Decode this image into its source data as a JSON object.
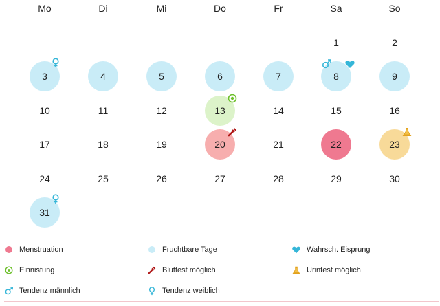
{
  "weekdays": [
    "Mo",
    "Di",
    "Mi",
    "Do",
    "Fr",
    "Sa",
    "So"
  ],
  "days": [
    {
      "n": "1",
      "row": 0,
      "col": 5
    },
    {
      "n": "2",
      "row": 0,
      "col": 6
    },
    {
      "n": "3",
      "row": 1,
      "col": 0,
      "state": "fertile",
      "badge": "female"
    },
    {
      "n": "4",
      "row": 1,
      "col": 1,
      "state": "fertile"
    },
    {
      "n": "5",
      "row": 1,
      "col": 2,
      "state": "fertile"
    },
    {
      "n": "6",
      "row": 1,
      "col": 3,
      "state": "fertile"
    },
    {
      "n": "7",
      "row": 1,
      "col": 4,
      "state": "fertile"
    },
    {
      "n": "8",
      "row": 1,
      "col": 5,
      "state": "fertile",
      "badge": "male-heart"
    },
    {
      "n": "9",
      "row": 1,
      "col": 6,
      "state": "fertile"
    },
    {
      "n": "10",
      "row": 2,
      "col": 0
    },
    {
      "n": "11",
      "row": 2,
      "col": 1
    },
    {
      "n": "12",
      "row": 2,
      "col": 2
    },
    {
      "n": "13",
      "row": 2,
      "col": 3,
      "state": "implant",
      "badge": "implant"
    },
    {
      "n": "14",
      "row": 2,
      "col": 4
    },
    {
      "n": "15",
      "row": 2,
      "col": 5
    },
    {
      "n": "16",
      "row": 2,
      "col": 6
    },
    {
      "n": "17",
      "row": 3,
      "col": 0
    },
    {
      "n": "18",
      "row": 3,
      "col": 1
    },
    {
      "n": "19",
      "row": 3,
      "col": 2
    },
    {
      "n": "20",
      "row": 3,
      "col": 3,
      "state": "blood",
      "badge": "blood"
    },
    {
      "n": "21",
      "row": 3,
      "col": 4
    },
    {
      "n": "22",
      "row": 3,
      "col": 5,
      "state": "mens"
    },
    {
      "n": "23",
      "row": 3,
      "col": 6,
      "state": "urine",
      "badge": "urine"
    },
    {
      "n": "24",
      "row": 4,
      "col": 0
    },
    {
      "n": "25",
      "row": 4,
      "col": 1
    },
    {
      "n": "26",
      "row": 4,
      "col": 2
    },
    {
      "n": "27",
      "row": 4,
      "col": 3
    },
    {
      "n": "28",
      "row": 4,
      "col": 4
    },
    {
      "n": "29",
      "row": 4,
      "col": 5
    },
    {
      "n": "30",
      "row": 4,
      "col": 6
    },
    {
      "n": "31",
      "row": 5,
      "col": 0,
      "state": "fertile",
      "badge": "female"
    }
  ],
  "legend": [
    {
      "label": "Menstruation",
      "icon": "dot-red-icon"
    },
    {
      "label": "Fruchtbare Tage",
      "icon": "dot-lightblue-icon"
    },
    {
      "label": "Wahrsch. Eisprung",
      "icon": "heart-icon"
    },
    {
      "label": "Einnistung",
      "icon": "implant-icon"
    },
    {
      "label": "Bluttest möglich",
      "icon": "dropper-icon"
    },
    {
      "label": "Urintest möglich",
      "icon": "flask-icon"
    },
    {
      "label": "Tendenz männlich",
      "icon": "male-icon"
    },
    {
      "label": "Tendenz weiblich",
      "icon": "female-icon"
    }
  ],
  "colors": {
    "fertile": "#c9ecf7",
    "implant": "#dcf3c9",
    "blood": "#f7aeae",
    "mens": "#ef7990",
    "urine": "#f8da99",
    "accent_blue": "#35b6d8",
    "accent_green": "#6cbf2a",
    "separator": "#f2c6cc"
  }
}
